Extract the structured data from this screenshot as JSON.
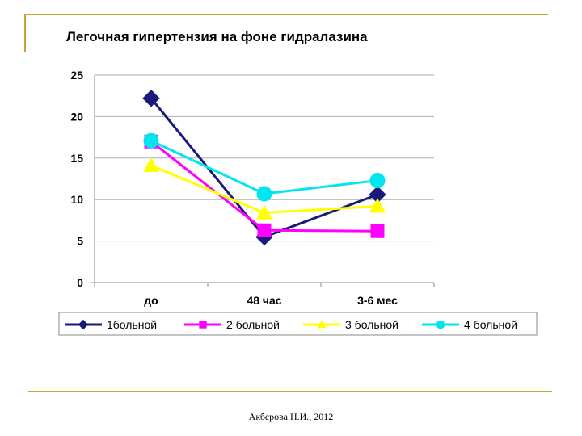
{
  "slide": {
    "footer": "Акберова Н.И., 2012",
    "accent_color": "#c9a23a"
  },
  "chart_data": {
    "type": "line",
    "title": "Легочная гипертензия на фоне гидралазина",
    "xlabel": "",
    "ylabel": "",
    "categories": [
      "до",
      "48 час",
      "3-6 мес"
    ],
    "ylim": [
      0,
      25
    ],
    "yticks": [
      0,
      5,
      10,
      15,
      20,
      25
    ],
    "grid": true,
    "legend_position": "bottom",
    "series": [
      {
        "name": "1больной",
        "values": [
          22.2,
          5.5,
          10.6
        ],
        "color": "#1a1a7a",
        "marker": "diamond"
      },
      {
        "name": "2 больной",
        "values": [
          17.0,
          6.3,
          6.2
        ],
        "color": "#ff00ff",
        "marker": "square"
      },
      {
        "name": "3 больной",
        "values": [
          14.1,
          8.4,
          9.2
        ],
        "color": "#ffff00",
        "marker": "triangle"
      },
      {
        "name": "4 больной",
        "values": [
          17.1,
          10.7,
          12.3
        ],
        "color": "#00e5ee",
        "marker": "circle"
      }
    ]
  }
}
